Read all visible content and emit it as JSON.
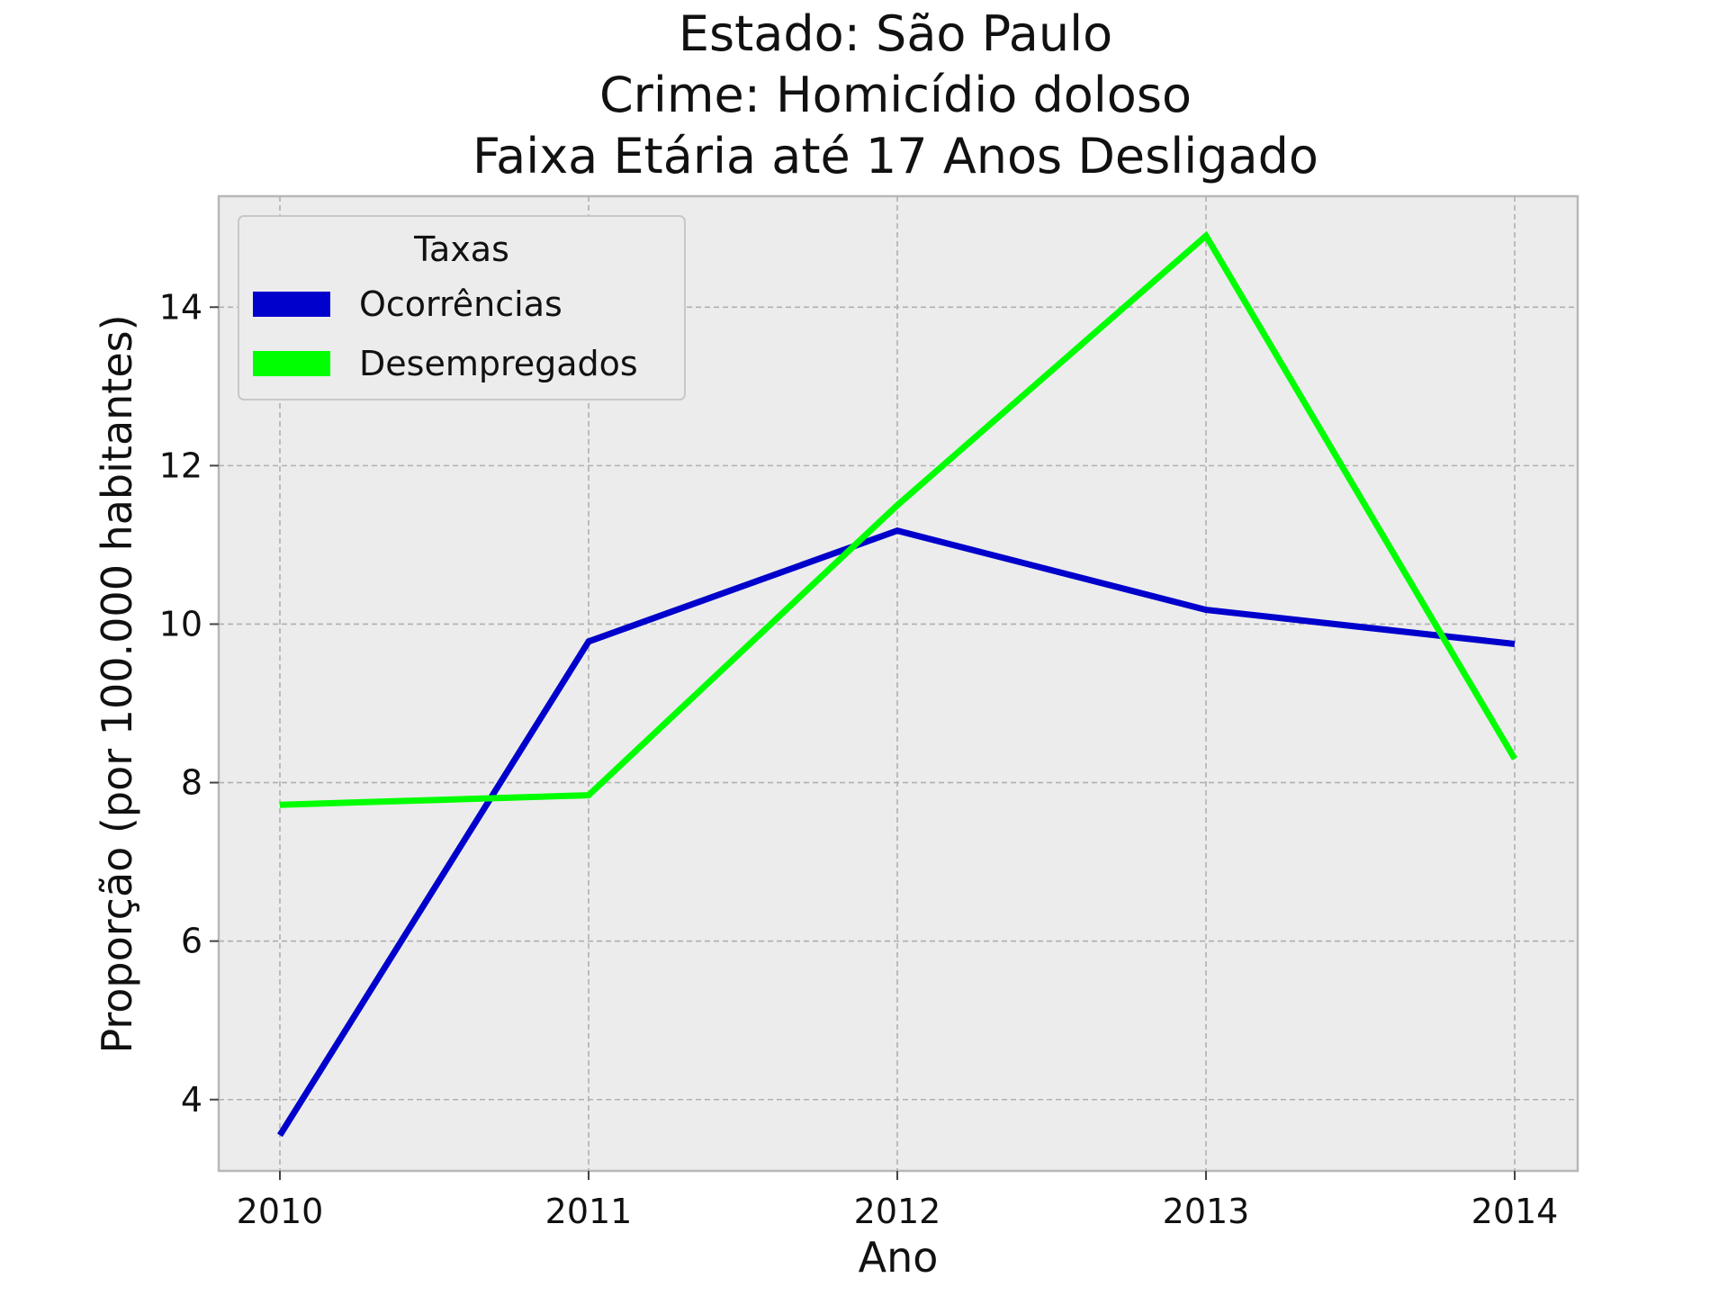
{
  "chart_data": {
    "type": "line",
    "title_lines": [
      "Estado: São Paulo",
      "Crime: Homicídio doloso",
      "Faixa Etária até 17 Anos   Desligado"
    ],
    "xlabel": "Ano",
    "ylabel": "Proporção (por 100.000 habitantes)",
    "categories": [
      "2010",
      "2011",
      "2012",
      "2013",
      "2014"
    ],
    "yticks": [
      4,
      6,
      8,
      10,
      12,
      14
    ],
    "ylim": [
      3.1,
      15.4
    ],
    "grid": true,
    "legend": {
      "title": "Taxas",
      "position": "top-left"
    },
    "series": [
      {
        "name": "Ocorrências",
        "color": "#0000cc",
        "values": [
          3.55,
          9.78,
          11.18,
          10.18,
          9.75
        ]
      },
      {
        "name": "Desempregados",
        "color": "#00ff00",
        "values": [
          7.72,
          7.84,
          11.5,
          14.9,
          8.3
        ]
      }
    ]
  }
}
